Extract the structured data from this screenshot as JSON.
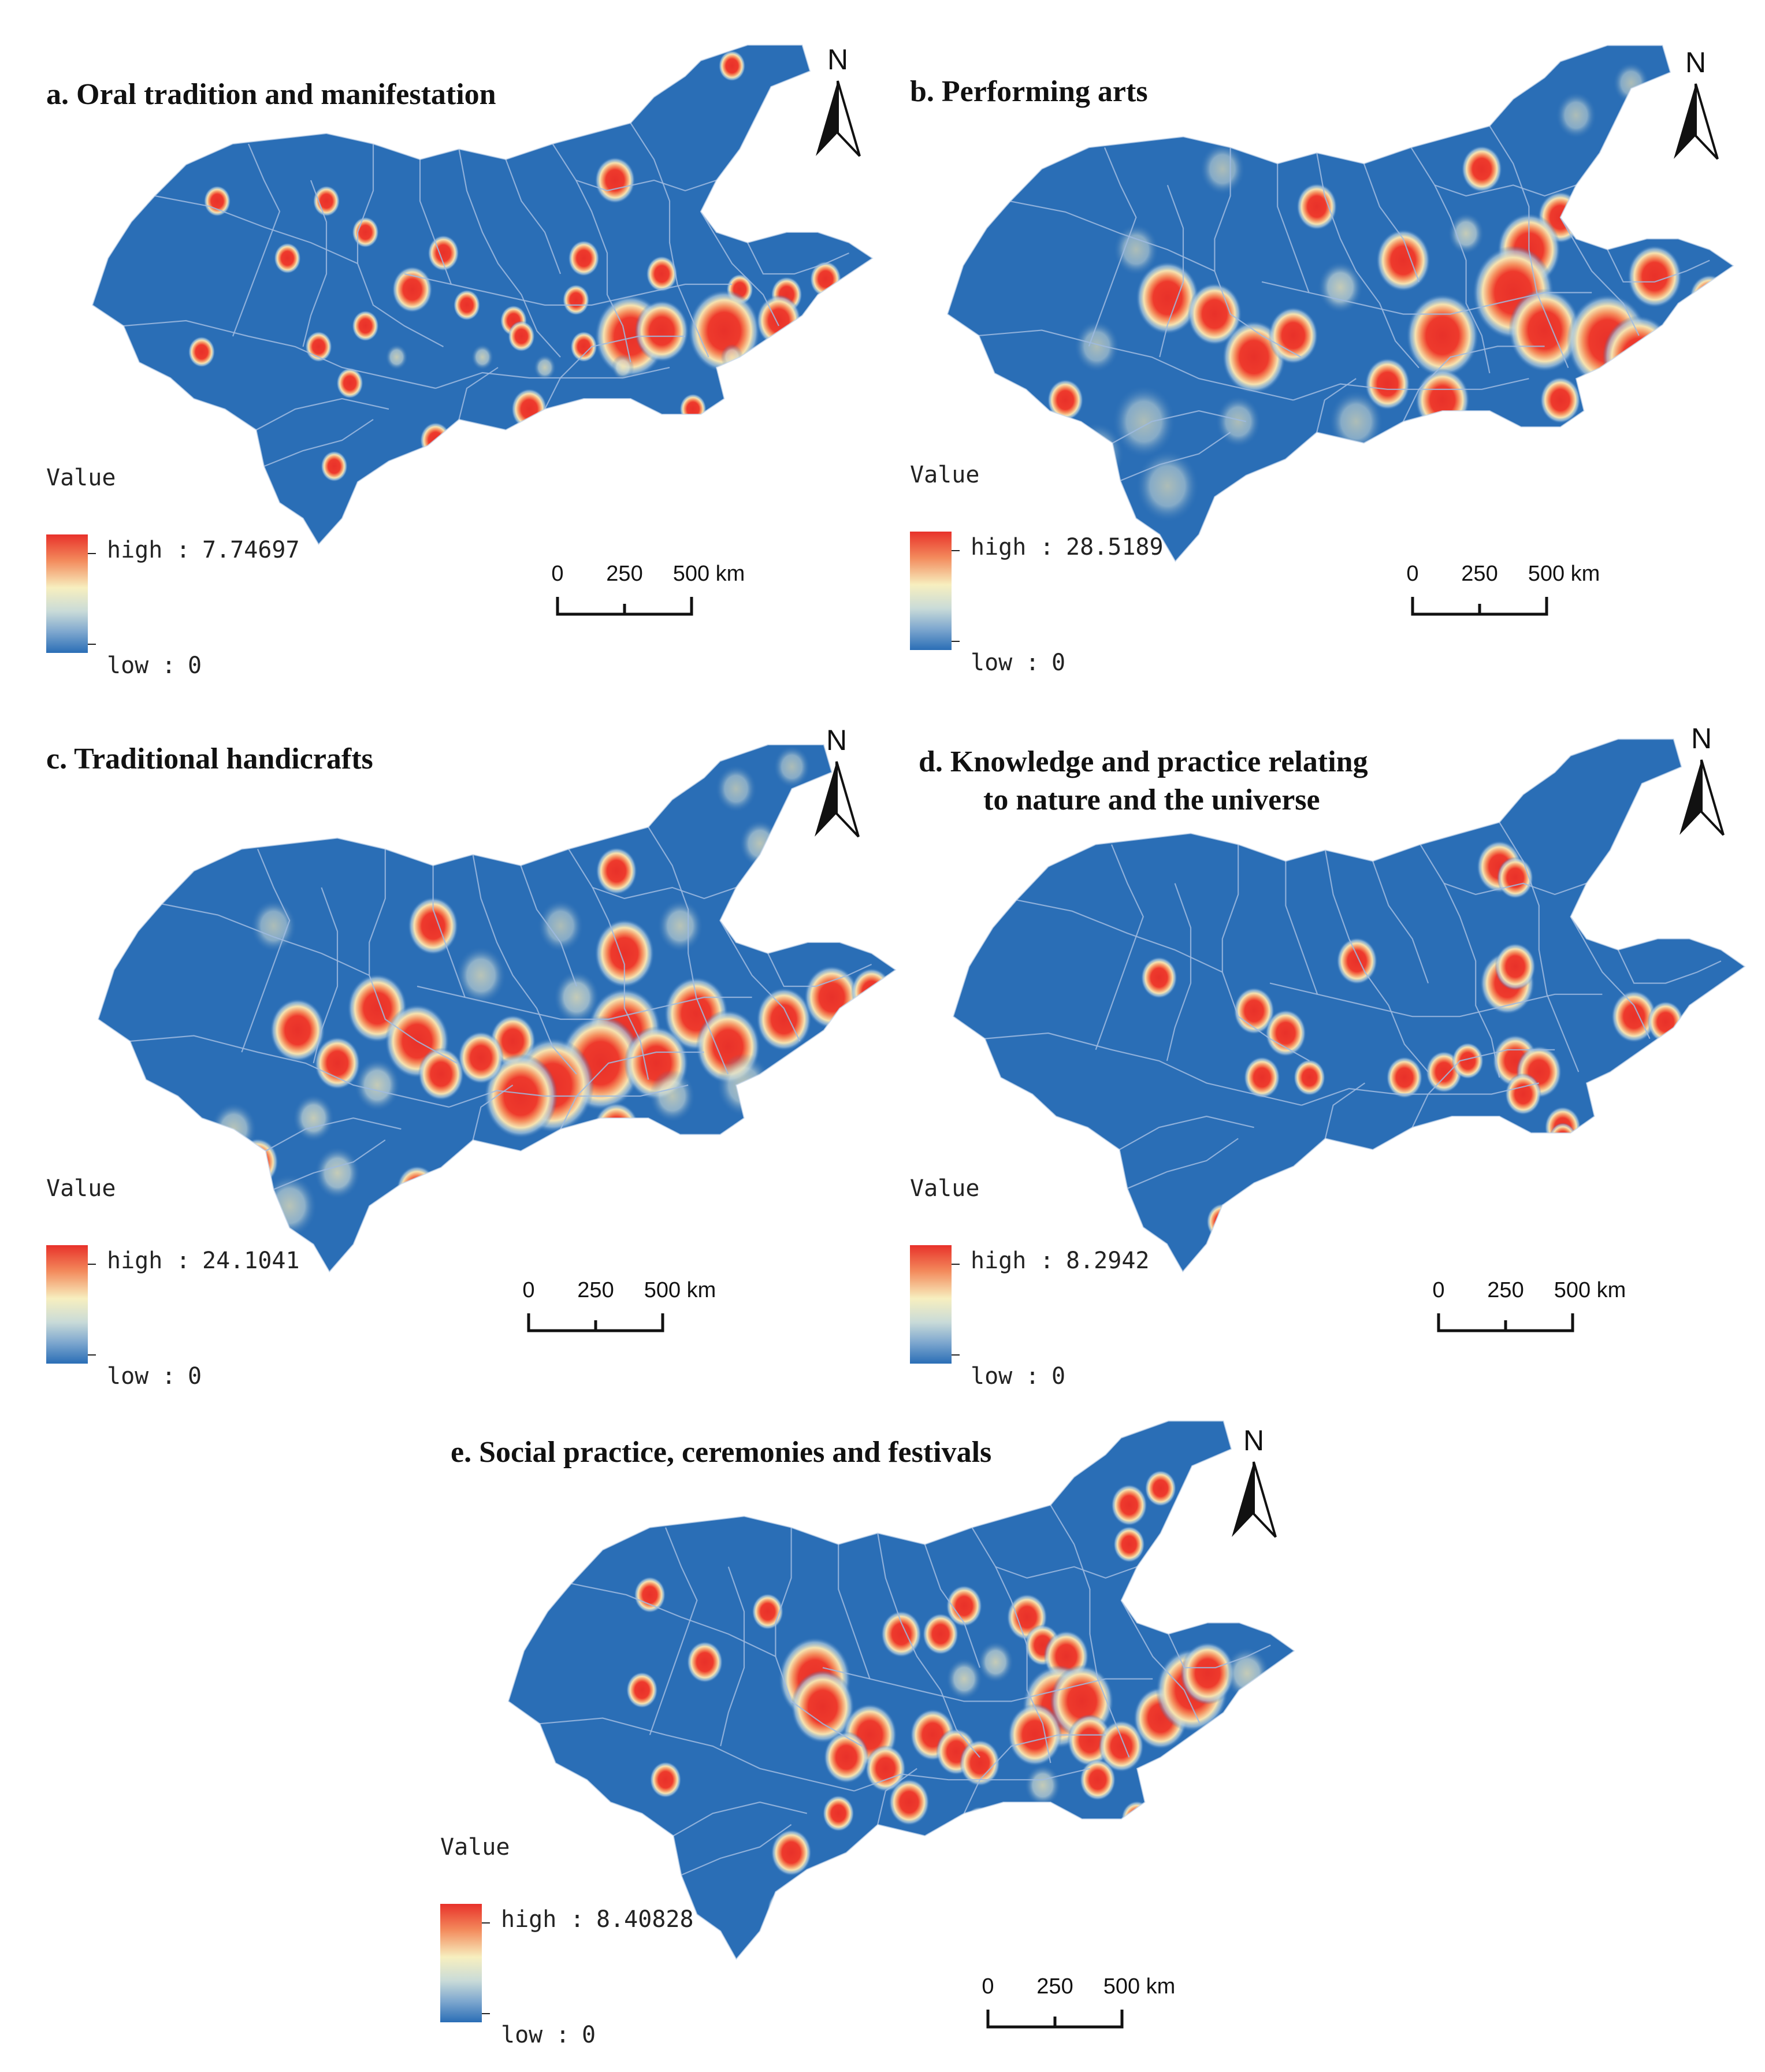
{
  "colors": {
    "region_fill": "#2a6eb6",
    "boundary": "#9fbbe0",
    "hot_center": "#e8312a",
    "hot_mid": "#f5e9b2",
    "cold": "#2a6eb6"
  },
  "panels": [
    {
      "id": "a",
      "title_lines": [
        "a. Oral tradition and manifestation"
      ],
      "legend": {
        "heading": "Value",
        "high_label": "high",
        "high_value": "7.74697",
        "low_label": "low",
        "low_value": "0"
      },
      "scale": {
        "ticks": [
          "0",
          "250",
          "500 km"
        ]
      },
      "north": "N",
      "hotspots": [
        [
          0.82,
          0.06,
          0.6,
          0.8
        ],
        [
          0.67,
          0.28,
          0.9,
          0.9
        ],
        [
          0.16,
          0.32,
          0.6,
          0.8
        ],
        [
          0.3,
          0.32,
          0.6,
          0.8
        ],
        [
          0.35,
          0.38,
          0.6,
          0.8
        ],
        [
          0.25,
          0.43,
          0.6,
          0.8
        ],
        [
          0.45,
          0.42,
          0.7,
          0.8
        ],
        [
          0.63,
          0.43,
          0.7,
          0.8
        ],
        [
          0.73,
          0.46,
          0.7,
          0.8
        ],
        [
          0.41,
          0.49,
          0.9,
          0.9
        ],
        [
          0.48,
          0.52,
          0.6,
          0.8
        ],
        [
          0.62,
          0.51,
          0.6,
          0.8
        ],
        [
          0.54,
          0.55,
          0.6,
          0.8
        ],
        [
          0.35,
          0.56,
          0.6,
          0.8
        ],
        [
          0.83,
          0.49,
          0.6,
          0.8
        ],
        [
          0.89,
          0.5,
          0.7,
          0.8
        ],
        [
          0.94,
          0.47,
          0.7,
          0.8
        ],
        [
          0.69,
          0.58,
          1.6,
          1.0
        ],
        [
          0.73,
          0.57,
          1.2,
          1.0
        ],
        [
          0.81,
          0.57,
          1.6,
          1.0
        ],
        [
          0.88,
          0.55,
          1.0,
          0.9
        ],
        [
          0.55,
          0.58,
          0.6,
          0.8
        ],
        [
          0.63,
          0.6,
          0.6,
          0.8
        ],
        [
          0.14,
          0.61,
          0.6,
          0.8
        ],
        [
          0.29,
          0.6,
          0.6,
          0.8
        ],
        [
          0.39,
          0.62,
          0.5,
          0.7
        ],
        [
          0.5,
          0.62,
          0.5,
          0.7
        ],
        [
          0.58,
          0.64,
          0.5,
          0.7
        ],
        [
          0.68,
          0.64,
          0.5,
          0.7
        ],
        [
          0.82,
          0.62,
          0.5,
          0.7
        ],
        [
          0.33,
          0.67,
          0.6,
          0.8
        ],
        [
          0.56,
          0.72,
          0.8,
          0.9
        ],
        [
          0.77,
          0.72,
          0.6,
          0.8
        ],
        [
          0.44,
          0.78,
          0.7,
          0.9
        ],
        [
          0.31,
          0.83,
          0.6,
          0.8
        ]
      ]
    },
    {
      "id": "b",
      "title_lines": [
        "b. Performing arts"
      ],
      "legend": {
        "heading": "Value",
        "high_label": "high",
        "high_value": "28.5189",
        "low_label": "low",
        "low_value": "0"
      },
      "scale": {
        "ticks": [
          "0",
          "250",
          "500 km"
        ]
      },
      "north": "N",
      "hotspots": [
        [
          0.68,
          0.25,
          0.9,
          0.9
        ],
        [
          0.78,
          0.34,
          1.0,
          0.9
        ],
        [
          0.74,
          0.4,
          1.4,
          1.0
        ],
        [
          0.72,
          0.48,
          1.8,
          1.0
        ],
        [
          0.76,
          0.55,
          1.6,
          1.0
        ],
        [
          0.84,
          0.57,
          1.8,
          1.0
        ],
        [
          0.88,
          0.6,
          1.6,
          1.0
        ],
        [
          0.63,
          0.56,
          1.6,
          1.0
        ],
        [
          0.56,
          0.65,
          1.0,
          0.9
        ],
        [
          0.63,
          0.68,
          1.2,
          1.0
        ],
        [
          0.78,
          0.68,
          0.9,
          0.9
        ],
        [
          0.9,
          0.45,
          1.2,
          1.0
        ],
        [
          0.97,
          0.49,
          0.9,
          0.9
        ],
        [
          0.28,
          0.49,
          1.4,
          1.0
        ],
        [
          0.34,
          0.52,
          1.2,
          1.0
        ],
        [
          0.39,
          0.6,
          1.4,
          0.9
        ],
        [
          0.44,
          0.56,
          1.1,
          0.9
        ],
        [
          0.47,
          0.32,
          0.9,
          0.9
        ],
        [
          0.58,
          0.42,
          1.2,
          0.8
        ],
        [
          0.5,
          0.47,
          1.0,
          0.7
        ],
        [
          0.66,
          0.37,
          0.8,
          0.7
        ],
        [
          0.15,
          0.68,
          0.8,
          0.9
        ],
        [
          0.1,
          0.17,
          1.0,
          0.5
        ],
        [
          0.35,
          0.25,
          1.0,
          0.5
        ],
        [
          0.24,
          0.4,
          1.0,
          0.5
        ],
        [
          0.19,
          0.58,
          1.0,
          0.5
        ],
        [
          0.25,
          0.72,
          1.4,
          0.5
        ],
        [
          0.37,
          0.72,
          1.0,
          0.5
        ],
        [
          0.52,
          0.72,
          1.2,
          0.5
        ],
        [
          0.19,
          0.78,
          1.2,
          0.5
        ],
        [
          0.28,
          0.84,
          1.4,
          0.5
        ],
        [
          0.8,
          0.15,
          0.9,
          0.5
        ],
        [
          0.87,
          0.09,
          0.8,
          0.5
        ],
        [
          0.9,
          0.62,
          0.9,
          0.6
        ]
      ]
    },
    {
      "id": "c",
      "title_lines": [
        "c. Traditional handicrafts"
      ],
      "legend": {
        "heading": "Value",
        "high_label": "high",
        "high_value": "24.1041",
        "low_label": "low",
        "low_value": "0"
      },
      "scale": {
        "ticks": [
          "0",
          "250",
          "500 km"
        ]
      },
      "north": "N",
      "hotspots": [
        [
          0.65,
          0.25,
          0.9,
          0.9
        ],
        [
          0.66,
          0.4,
          1.3,
          1.0
        ],
        [
          0.42,
          0.35,
          1.1,
          1.0
        ],
        [
          0.35,
          0.5,
          1.3,
          1.0
        ],
        [
          0.4,
          0.56,
          1.4,
          1.0
        ],
        [
          0.25,
          0.54,
          1.2,
          1.0
        ],
        [
          0.3,
          0.6,
          1.0,
          0.9
        ],
        [
          0.52,
          0.56,
          1.0,
          0.9
        ],
        [
          0.66,
          0.54,
          1.6,
          1.0
        ],
        [
          0.75,
          0.51,
          1.4,
          1.0
        ],
        [
          0.63,
          0.6,
          1.8,
          1.0
        ],
        [
          0.7,
          0.6,
          1.4,
          1.0
        ],
        [
          0.57,
          0.64,
          1.8,
          1.0
        ],
        [
          0.53,
          0.66,
          1.6,
          1.0
        ],
        [
          0.79,
          0.57,
          1.4,
          1.0
        ],
        [
          0.86,
          0.52,
          1.2,
          1.0
        ],
        [
          0.92,
          0.48,
          1.2,
          1.0
        ],
        [
          0.97,
          0.47,
          0.9,
          0.8
        ],
        [
          0.48,
          0.59,
          1.0,
          0.8
        ],
        [
          0.43,
          0.62,
          1.0,
          0.8
        ],
        [
          0.35,
          0.64,
          1.0,
          0.7
        ],
        [
          0.65,
          0.72,
          1.0,
          0.9
        ],
        [
          0.27,
          0.7,
          0.9,
          0.7
        ],
        [
          0.2,
          0.78,
          0.9,
          0.8
        ],
        [
          0.3,
          0.8,
          1.0,
          0.7
        ],
        [
          0.24,
          0.86,
          1.2,
          0.6
        ],
        [
          0.17,
          0.72,
          1.0,
          0.6
        ],
        [
          0.4,
          0.83,
          0.9,
          0.9
        ],
        [
          0.8,
          0.1,
          0.9,
          0.5
        ],
        [
          0.87,
          0.06,
          0.8,
          0.5
        ],
        [
          0.83,
          0.2,
          0.9,
          0.6
        ],
        [
          0.73,
          0.35,
          1.0,
          0.6
        ],
        [
          0.58,
          0.35,
          1.0,
          0.5
        ],
        [
          0.48,
          0.44,
          1.1,
          0.6
        ],
        [
          0.6,
          0.48,
          1.0,
          0.7
        ],
        [
          0.22,
          0.35,
          1.0,
          0.5
        ],
        [
          0.81,
          0.64,
          1.2,
          0.6
        ],
        [
          0.72,
          0.66,
          1.0,
          0.6
        ]
      ]
    },
    {
      "id": "d",
      "title_lines": [
        "d. Knowledge and practice relating",
        "to nature and the universe"
      ],
      "legend": {
        "heading": "Value",
        "high_label": "high",
        "high_value": "8.2942",
        "low_label": "low",
        "low_value": "0"
      },
      "scale": {
        "ticks": [
          "0",
          "250",
          "500 km"
        ]
      },
      "north": "N",
      "hotspots": [
        [
          0.69,
          0.25,
          1.0,
          0.9
        ],
        [
          0.71,
          0.27,
          0.8,
          0.9
        ],
        [
          0.51,
          0.42,
          0.9,
          0.9
        ],
        [
          0.7,
          0.46,
          1.2,
          1.0
        ],
        [
          0.71,
          0.43,
          0.9,
          0.9
        ],
        [
          0.26,
          0.45,
          0.8,
          0.9
        ],
        [
          0.38,
          0.51,
          0.9,
          0.9
        ],
        [
          0.42,
          0.55,
          0.9,
          0.9
        ],
        [
          0.39,
          0.63,
          0.8,
          0.9
        ],
        [
          0.45,
          0.63,
          0.7,
          0.9
        ],
        [
          0.62,
          0.62,
          0.8,
          0.9
        ],
        [
          0.65,
          0.6,
          0.7,
          0.9
        ],
        [
          0.71,
          0.6,
          1.0,
          1.0
        ],
        [
          0.74,
          0.62,
          1.0,
          1.0
        ],
        [
          0.72,
          0.66,
          0.8,
          0.9
        ],
        [
          0.77,
          0.72,
          0.8,
          0.9
        ],
        [
          0.77,
          0.74,
          0.6,
          0.9
        ],
        [
          0.86,
          0.52,
          1.0,
          1.0
        ],
        [
          0.9,
          0.53,
          0.8,
          0.9
        ],
        [
          0.57,
          0.63,
          0.8,
          0.9
        ],
        [
          0.34,
          0.89,
          0.7,
          0.9
        ]
      ]
    },
    {
      "id": "e",
      "title_lines": [
        "e. Social practice, ceremonies and festivals"
      ],
      "legend": {
        "heading": "Value",
        "high_label": "high",
        "high_value": "8.40828",
        "low_label": "low",
        "low_value": "0"
      },
      "scale": {
        "ticks": [
          "0",
          "250",
          "500 km"
        ]
      },
      "north": "N",
      "hotspots": [
        [
          0.79,
          0.17,
          0.8,
          0.9
        ],
        [
          0.83,
          0.14,
          0.7,
          0.8
        ],
        [
          0.79,
          0.24,
          0.7,
          0.8
        ],
        [
          0.18,
          0.33,
          0.7,
          0.8
        ],
        [
          0.33,
          0.36,
          0.7,
          0.9
        ],
        [
          0.25,
          0.45,
          0.8,
          0.9
        ],
        [
          0.17,
          0.5,
          0.7,
          0.8
        ],
        [
          0.39,
          0.48,
          1.6,
          1.0
        ],
        [
          0.4,
          0.53,
          1.4,
          1.0
        ],
        [
          0.5,
          0.4,
          0.9,
          0.9
        ],
        [
          0.55,
          0.4,
          0.8,
          0.8
        ],
        [
          0.58,
          0.35,
          0.8,
          0.8
        ],
        [
          0.66,
          0.37,
          0.9,
          0.9
        ],
        [
          0.68,
          0.42,
          0.8,
          0.8
        ],
        [
          0.71,
          0.44,
          1.0,
          1.0
        ],
        [
          0.7,
          0.53,
          1.6,
          1.0
        ],
        [
          0.73,
          0.52,
          1.4,
          1.0
        ],
        [
          0.67,
          0.58,
          1.2,
          1.0
        ],
        [
          0.74,
          0.59,
          1.0,
          1.0
        ],
        [
          0.78,
          0.6,
          1.0,
          1.0
        ],
        [
          0.75,
          0.66,
          0.8,
          0.9
        ],
        [
          0.46,
          0.58,
          1.2,
          1.0
        ],
        [
          0.48,
          0.64,
          0.9,
          0.9
        ],
        [
          0.54,
          0.58,
          1.0,
          0.9
        ],
        [
          0.57,
          0.61,
          0.9,
          0.9
        ],
        [
          0.6,
          0.63,
          0.9,
          0.9
        ],
        [
          0.43,
          0.62,
          1.0,
          0.8
        ],
        [
          0.51,
          0.7,
          0.9,
          0.8
        ],
        [
          0.83,
          0.55,
          1.2,
          0.9
        ],
        [
          0.87,
          0.5,
          1.6,
          1.0
        ],
        [
          0.89,
          0.47,
          1.2,
          1.0
        ],
        [
          0.94,
          0.47,
          1.0,
          0.7
        ],
        [
          0.2,
          0.66,
          0.7,
          0.8
        ],
        [
          0.42,
          0.72,
          0.7,
          0.8
        ],
        [
          0.6,
          0.74,
          0.7,
          0.8
        ],
        [
          0.8,
          0.73,
          0.7,
          0.8
        ],
        [
          0.36,
          0.79,
          0.9,
          1.0
        ],
        [
          0.35,
          0.89,
          0.7,
          0.8
        ],
        [
          0.58,
          0.48,
          0.8,
          0.7
        ],
        [
          0.62,
          0.45,
          0.8,
          0.7
        ],
        [
          0.68,
          0.67,
          0.8,
          0.7
        ]
      ]
    }
  ]
}
